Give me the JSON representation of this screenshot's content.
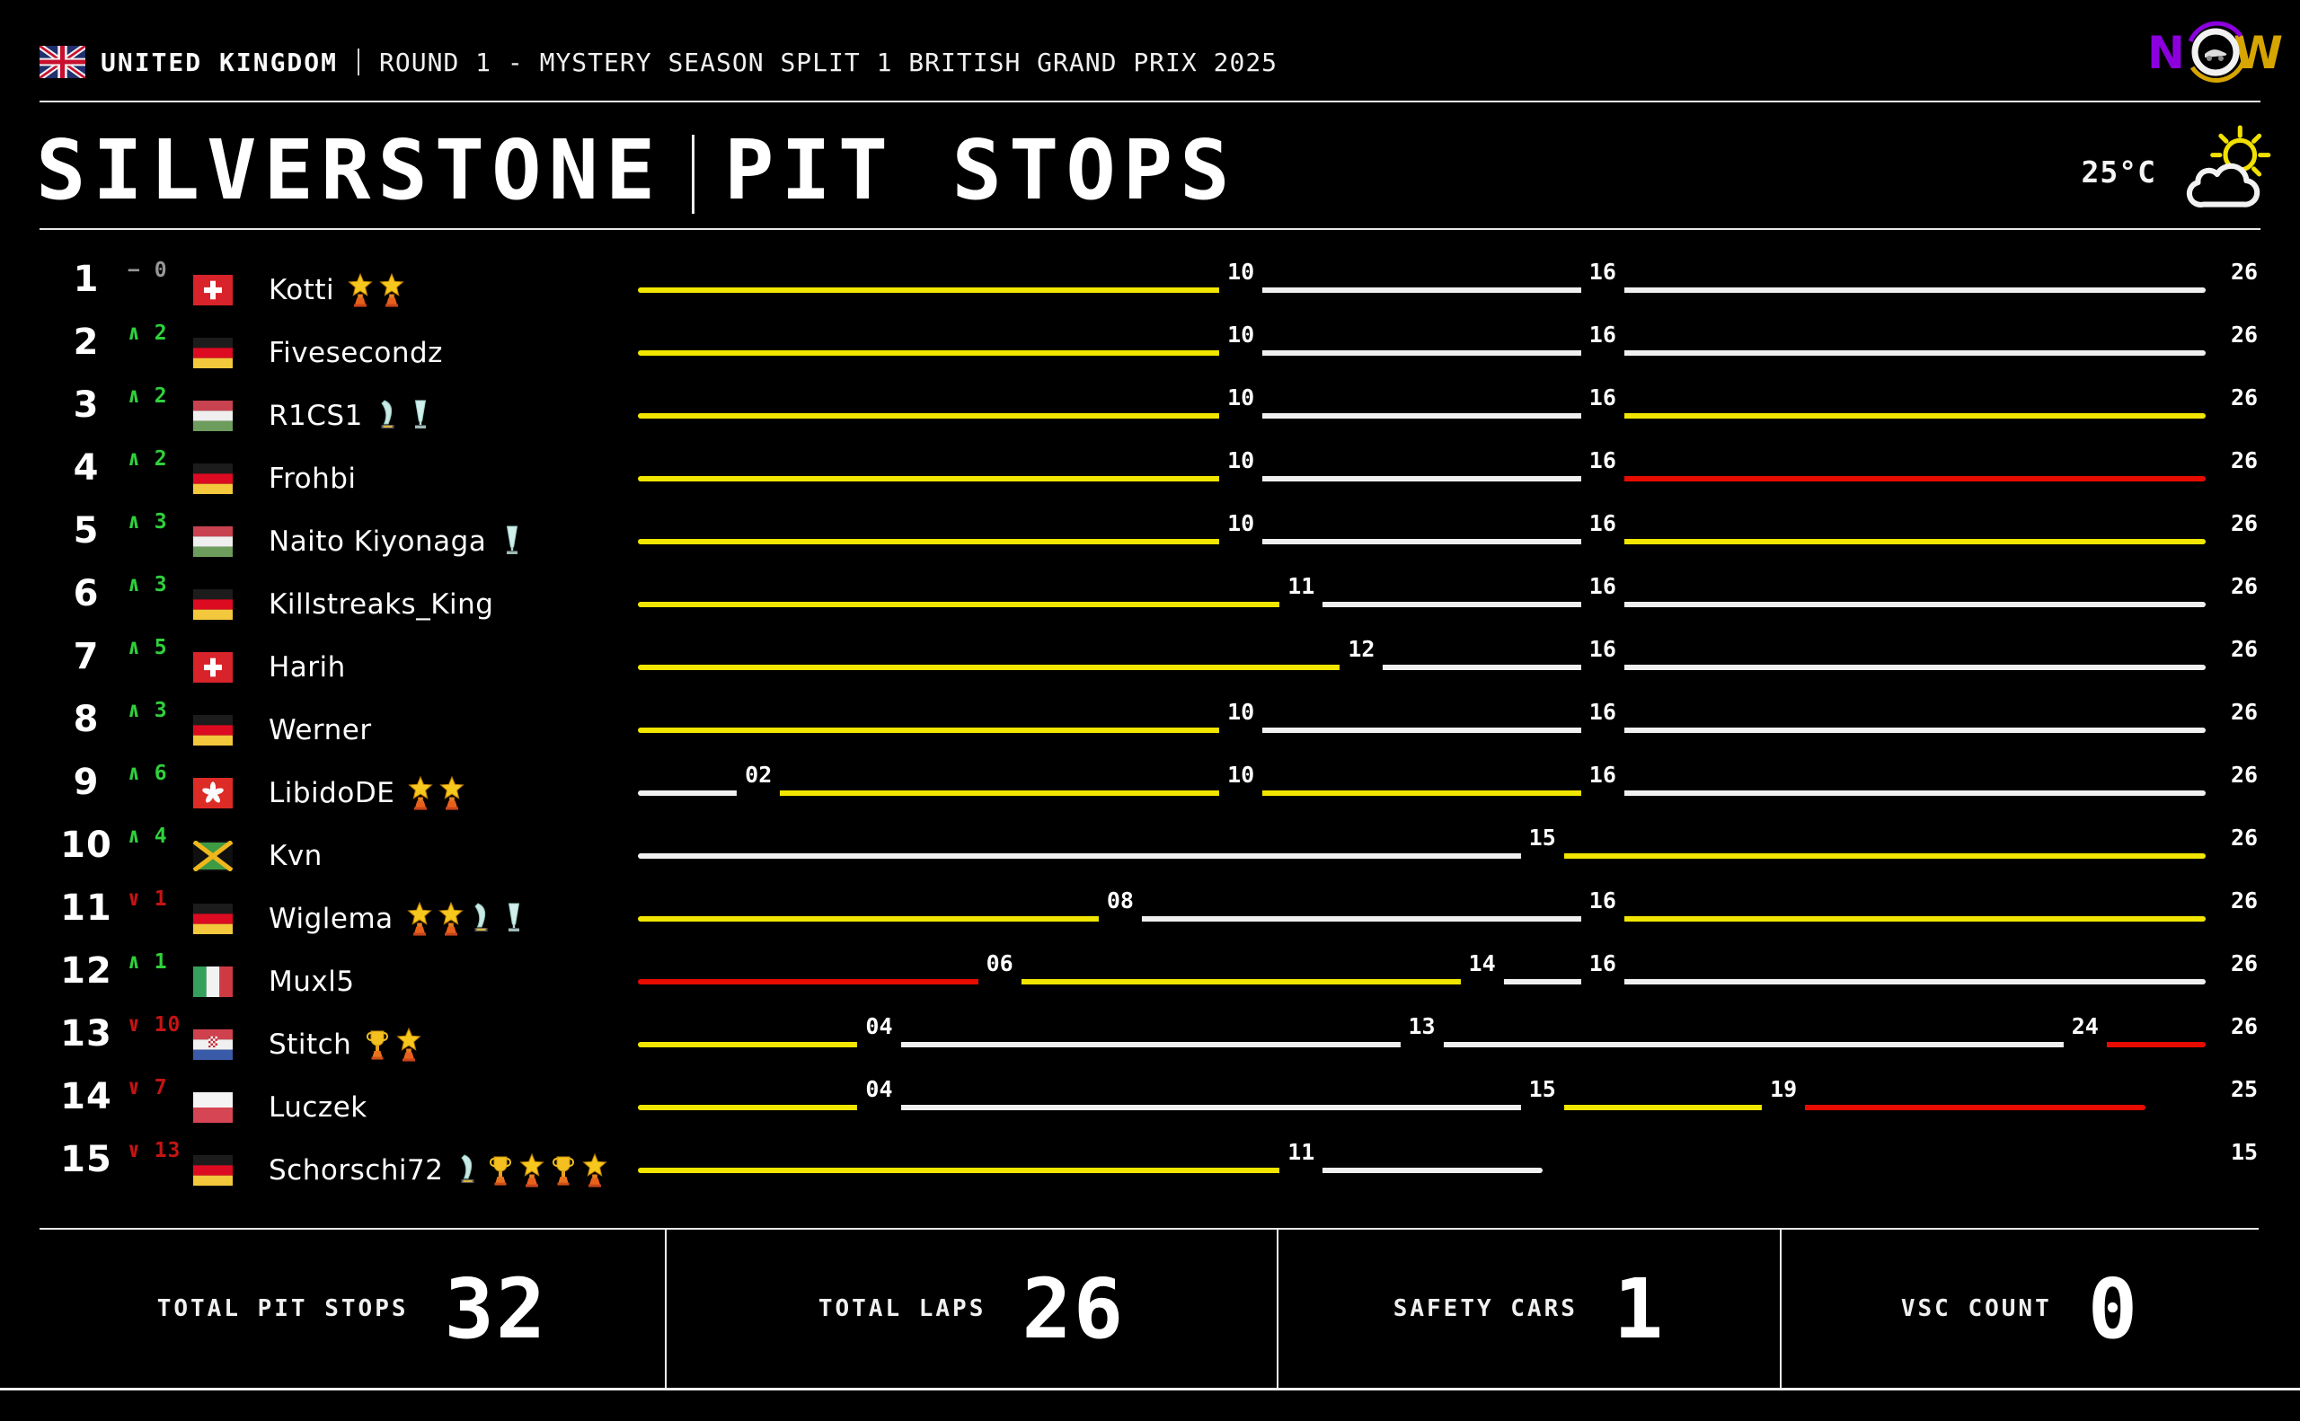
{
  "header": {
    "country": "UNITED KINGDOM",
    "round_info": "ROUND 1 - MYSTERY SEASON SPLIT 1 BRITISH GRAND PRIX 2025",
    "logo": {
      "n": "N",
      "o": "O",
      "w": "W"
    }
  },
  "title": {
    "circuit": "SILVERSTONE",
    "screen": "PIT STOPS"
  },
  "weather": {
    "temperature": "25°C",
    "condition_icon": "sun-behind-cloud"
  },
  "race": {
    "total_laps": 26
  },
  "colors": {
    "yellow": "#f2e600",
    "white_line": "#f0f0f0",
    "red": "#e80b00",
    "gain_green": "#2fd13c",
    "loss_red": "#c41414",
    "neutral_gray": "#979797",
    "logo_purple": "#8b00dc",
    "logo_gold": "#d7a500"
  },
  "rows": [
    {
      "position": "1",
      "change_dir": "none",
      "change_value": "0",
      "flag": "switzerland",
      "flag_code": "ch",
      "name": "Kotti",
      "trophies": [
        "gold-star",
        "gold-star"
      ],
      "segments": [
        {
          "from": 0,
          "to": 10,
          "color": "yellow"
        },
        {
          "from": 10,
          "to": 16,
          "color": "white"
        },
        {
          "from": 16,
          "to": 26,
          "color": "white"
        }
      ],
      "pit_markers": [
        {
          "lap": 10,
          "label": "10"
        },
        {
          "lap": 16,
          "label": "16"
        }
      ],
      "finish_label": "26"
    },
    {
      "position": "2",
      "change_dir": "up",
      "change_value": "2",
      "flag": "germany",
      "flag_code": "de",
      "name": "Fivesecondz",
      "trophies": [],
      "segments": [
        {
          "from": 0,
          "to": 10,
          "color": "yellow"
        },
        {
          "from": 10,
          "to": 16,
          "color": "white"
        },
        {
          "from": 16,
          "to": 26,
          "color": "white"
        }
      ],
      "pit_markers": [
        {
          "lap": 10,
          "label": "10"
        },
        {
          "lap": 16,
          "label": "16"
        }
      ],
      "finish_label": "26"
    },
    {
      "position": "3",
      "change_dir": "up",
      "change_value": "2",
      "flag": "hungary",
      "flag_code": "hu",
      "name": "R1CS1",
      "trophies": [
        "teal-sail",
        "teal-flute"
      ],
      "segments": [
        {
          "from": 0,
          "to": 10,
          "color": "yellow"
        },
        {
          "from": 10,
          "to": 16,
          "color": "white"
        },
        {
          "from": 16,
          "to": 26,
          "color": "yellow"
        }
      ],
      "pit_markers": [
        {
          "lap": 10,
          "label": "10"
        },
        {
          "lap": 16,
          "label": "16"
        }
      ],
      "finish_label": "26"
    },
    {
      "position": "4",
      "change_dir": "up",
      "change_value": "2",
      "flag": "germany",
      "flag_code": "de",
      "name": "Frohbi",
      "trophies": [],
      "segments": [
        {
          "from": 0,
          "to": 10,
          "color": "yellow"
        },
        {
          "from": 10,
          "to": 16,
          "color": "white"
        },
        {
          "from": 16,
          "to": 26,
          "color": "red"
        }
      ],
      "pit_markers": [
        {
          "lap": 10,
          "label": "10"
        },
        {
          "lap": 16,
          "label": "16"
        }
      ],
      "finish_label": "26"
    },
    {
      "position": "5",
      "change_dir": "up",
      "change_value": "3",
      "flag": "hungary",
      "flag_code": "hu",
      "name": "Naito Kiyonaga",
      "trophies": [
        "teal-flute"
      ],
      "segments": [
        {
          "from": 0,
          "to": 10,
          "color": "yellow"
        },
        {
          "from": 10,
          "to": 16,
          "color": "white"
        },
        {
          "from": 16,
          "to": 26,
          "color": "yellow"
        }
      ],
      "pit_markers": [
        {
          "lap": 10,
          "label": "10"
        },
        {
          "lap": 16,
          "label": "16"
        }
      ],
      "finish_label": "26"
    },
    {
      "position": "6",
      "change_dir": "up",
      "change_value": "3",
      "flag": "germany",
      "flag_code": "de",
      "name": "Killstreaks_King",
      "trophies": [],
      "segments": [
        {
          "from": 0,
          "to": 11,
          "color": "yellow"
        },
        {
          "from": 11,
          "to": 16,
          "color": "white"
        },
        {
          "from": 16,
          "to": 26,
          "color": "white"
        }
      ],
      "pit_markers": [
        {
          "lap": 11,
          "label": "11"
        },
        {
          "lap": 16,
          "label": "16"
        }
      ],
      "finish_label": "26"
    },
    {
      "position": "7",
      "change_dir": "up",
      "change_value": "5",
      "flag": "switzerland",
      "flag_code": "ch",
      "name": "Harih",
      "trophies": [],
      "segments": [
        {
          "from": 0,
          "to": 12,
          "color": "yellow"
        },
        {
          "from": 12,
          "to": 16,
          "color": "white"
        },
        {
          "from": 16,
          "to": 26,
          "color": "white"
        }
      ],
      "pit_markers": [
        {
          "lap": 12,
          "label": "12"
        },
        {
          "lap": 16,
          "label": "16"
        }
      ],
      "finish_label": "26"
    },
    {
      "position": "8",
      "change_dir": "up",
      "change_value": "3",
      "flag": "germany",
      "flag_code": "de",
      "name": "Werner",
      "trophies": [],
      "segments": [
        {
          "from": 0,
          "to": 10,
          "color": "yellow"
        },
        {
          "from": 10,
          "to": 16,
          "color": "white"
        },
        {
          "from": 16,
          "to": 26,
          "color": "white"
        }
      ],
      "pit_markers": [
        {
          "lap": 10,
          "label": "10"
        },
        {
          "lap": 16,
          "label": "16"
        }
      ],
      "finish_label": "26"
    },
    {
      "position": "9",
      "change_dir": "up",
      "change_value": "6",
      "flag": "hong-kong",
      "flag_code": "hk",
      "name": "LibidoDE",
      "trophies": [
        "gold-star",
        "gold-star"
      ],
      "segments": [
        {
          "from": 0,
          "to": 2,
          "color": "white"
        },
        {
          "from": 2,
          "to": 10,
          "color": "yellow"
        },
        {
          "from": 10,
          "to": 16,
          "color": "yellow"
        },
        {
          "from": 16,
          "to": 26,
          "color": "white"
        }
      ],
      "pit_markers": [
        {
          "lap": 2,
          "label": "02"
        },
        {
          "lap": 10,
          "label": "10"
        },
        {
          "lap": 16,
          "label": "16"
        }
      ],
      "finish_label": "26"
    },
    {
      "position": "10",
      "change_dir": "up",
      "change_value": "4",
      "flag": "jamaica",
      "flag_code": "jm",
      "name": "Kvn",
      "trophies": [],
      "segments": [
        {
          "from": 0,
          "to": 15,
          "color": "white"
        },
        {
          "from": 15,
          "to": 26,
          "color": "yellow"
        }
      ],
      "pit_markers": [
        {
          "lap": 15,
          "label": "15"
        }
      ],
      "finish_label": "26"
    },
    {
      "position": "11",
      "change_dir": "down",
      "change_value": "1",
      "flag": "germany",
      "flag_code": "de",
      "name": "Wiglema",
      "trophies": [
        "gold-star",
        "gold-star",
        "teal-sail",
        "teal-flute"
      ],
      "segments": [
        {
          "from": 0,
          "to": 8,
          "color": "yellow"
        },
        {
          "from": 8,
          "to": 16,
          "color": "white"
        },
        {
          "from": 16,
          "to": 26,
          "color": "yellow"
        }
      ],
      "pit_markers": [
        {
          "lap": 8,
          "label": "08"
        },
        {
          "lap": 16,
          "label": "16"
        }
      ],
      "finish_label": "26"
    },
    {
      "position": "12",
      "change_dir": "up",
      "change_value": "1",
      "flag": "italy",
      "flag_code": "it",
      "name": "Muxl5",
      "trophies": [],
      "segments": [
        {
          "from": 0,
          "to": 6,
          "color": "red"
        },
        {
          "from": 6,
          "to": 14,
          "color": "yellow"
        },
        {
          "from": 14,
          "to": 16,
          "color": "white"
        },
        {
          "from": 16,
          "to": 26,
          "color": "white"
        }
      ],
      "pit_markers": [
        {
          "lap": 6,
          "label": "06"
        },
        {
          "lap": 14,
          "label": "14"
        },
        {
          "lap": 16,
          "label": "16"
        }
      ],
      "finish_label": "26"
    },
    {
      "position": "13",
      "change_dir": "down",
      "change_value": "10",
      "flag": "croatia",
      "flag_code": "hr",
      "name": "Stitch",
      "trophies": [
        "gold-cup",
        "gold-star"
      ],
      "segments": [
        {
          "from": 0,
          "to": 4,
          "color": "yellow"
        },
        {
          "from": 4,
          "to": 13,
          "color": "white"
        },
        {
          "from": 13,
          "to": 24,
          "color": "white"
        },
        {
          "from": 24,
          "to": 26,
          "color": "red"
        }
      ],
      "pit_markers": [
        {
          "lap": 4,
          "label": "04"
        },
        {
          "lap": 13,
          "label": "13"
        },
        {
          "lap": 24,
          "label": "24"
        }
      ],
      "finish_label": "26"
    },
    {
      "position": "14",
      "change_dir": "down",
      "change_value": "7",
      "flag": "poland",
      "flag_code": "pl",
      "name": "Luczek",
      "trophies": [],
      "segments": [
        {
          "from": 0,
          "to": 4,
          "color": "yellow"
        },
        {
          "from": 4,
          "to": 15,
          "color": "white"
        },
        {
          "from": 15,
          "to": 19,
          "color": "yellow"
        },
        {
          "from": 19,
          "to": 25,
          "color": "red"
        }
      ],
      "pit_markers": [
        {
          "lap": 4,
          "label": "04"
        },
        {
          "lap": 15,
          "label": "15"
        },
        {
          "lap": 19,
          "label": "19"
        }
      ],
      "finish_label": "25"
    },
    {
      "position": "15",
      "change_dir": "down",
      "change_value": "13",
      "flag": "germany",
      "flag_code": "de",
      "name": "Schorschi72",
      "trophies": [
        "teal-sail",
        "gold-cup",
        "gold-star",
        "gold-cup",
        "gold-star"
      ],
      "segments": [
        {
          "from": 0,
          "to": 11,
          "color": "yellow"
        },
        {
          "from": 11,
          "to": 15,
          "color": "white"
        }
      ],
      "pit_markers": [
        {
          "lap": 11,
          "label": "11"
        }
      ],
      "finish_label": "15"
    }
  ],
  "stats": [
    {
      "label": "TOTAL PIT STOPS",
      "value": "32"
    },
    {
      "label": "TOTAL LAPS",
      "value": "26"
    },
    {
      "label": "SAFETY CARS",
      "value": "1"
    },
    {
      "label": "VSC COUNT",
      "value": "0"
    }
  ]
}
